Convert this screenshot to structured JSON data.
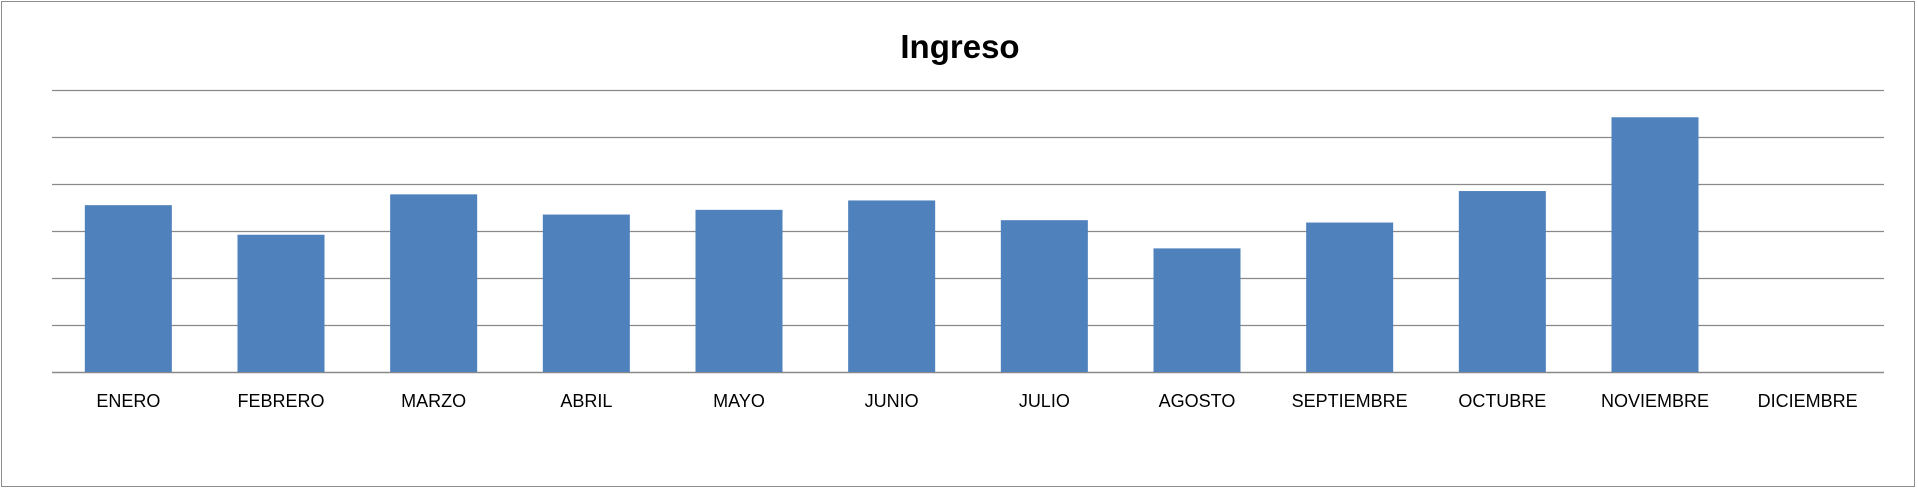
{
  "chart_data": {
    "type": "bar",
    "title": "Ingreso",
    "xlabel": "",
    "ylabel": "",
    "categories": [
      "ENERO",
      "FEBRERO",
      "MARZO",
      "ABRIL",
      "MAYO",
      "JUNIO",
      "JULIO",
      "AGOSTO",
      "SEPTIEMBRE",
      "OCTUBRE",
      "NOVIEMBRE",
      "DICIEMBRE"
    ],
    "values": [
      3.55,
      2.92,
      3.78,
      3.35,
      3.45,
      3.65,
      3.23,
      2.63,
      3.18,
      3.85,
      5.42,
      0
    ],
    "ylim": [
      0,
      6
    ],
    "y_tick_count": 7,
    "y_tick_labels_shown": false,
    "grid": true,
    "legend": "none",
    "colors": {
      "bar": "#4f81bd",
      "grid": "#898989",
      "axis": "#898989"
    }
  }
}
